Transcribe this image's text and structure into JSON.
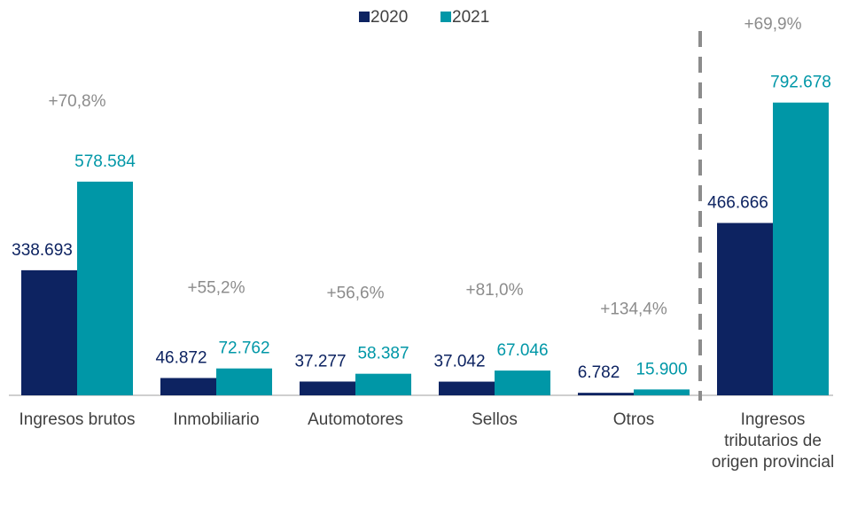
{
  "chart_data": {
    "type": "bar",
    "categories": [
      "Ingresos brutos",
      "Inmobiliario",
      "Automotores",
      "Sellos",
      "Otros",
      "Ingresos tributarios de origen provincial"
    ],
    "series": [
      {
        "name": "2020",
        "color": "#0d2361",
        "values": [
          338693,
          46872,
          37277,
          37042,
          6782,
          466666
        ],
        "value_labels": [
          "338.693",
          "46.872",
          "37.277",
          "37.042",
          "6.782",
          "466.666"
        ]
      },
      {
        "name": "2021",
        "color": "#0097a7",
        "values": [
          578584,
          72762,
          58387,
          67046,
          15900,
          792678
        ],
        "value_labels": [
          "578.584",
          "72.762",
          "58.387",
          "67.046",
          "15.900",
          "792.678"
        ]
      }
    ],
    "annotations": [
      "+70,8%",
      "+55,2%",
      "+56,6%",
      "+81,0%",
      "+134,4%",
      "+69,9%"
    ],
    "ylim": [
      0,
      900000
    ],
    "legend": "top"
  }
}
